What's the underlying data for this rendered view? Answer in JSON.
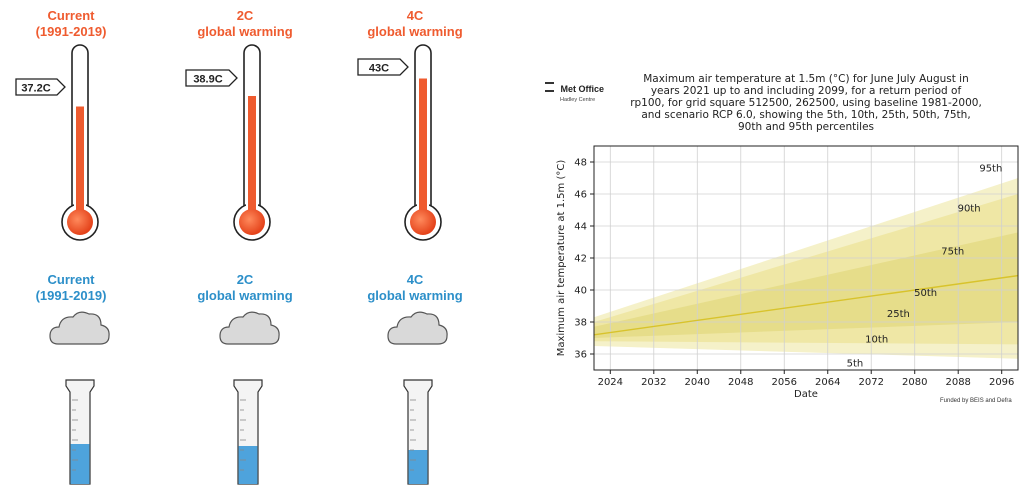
{
  "temperature_columns": [
    {
      "title": "Current\n(1991-2019)",
      "value_label": "37.2C",
      "fill_fraction": 0.66
    },
    {
      "title": "2C\nglobal warming",
      "value_label": "38.9C",
      "fill_fraction": 0.72
    },
    {
      "title": "4C\nglobal warming",
      "value_label": "43C",
      "fill_fraction": 0.82
    }
  ],
  "rain_columns": [
    {
      "title": "Current\n(1991-2019)"
    },
    {
      "title": "2C\nglobal warming"
    },
    {
      "title": "4C\nglobal warming"
    }
  ],
  "colors": {
    "thermometer_red": "#ef5b2f",
    "rain_blue": "#2c8fc9",
    "band_outer": "#f5f1c9",
    "band_mid": "#efe7a5",
    "band_inner": "#e6dd8a",
    "median_line": "#d8c32c"
  },
  "icons": {
    "thermometer": "thermometer-icon",
    "cloud": "cloud-icon",
    "rain_gauge": "rain-gauge-icon"
  },
  "logo": {
    "name": "Met Office",
    "subname": "Hadley Centre"
  },
  "funding_note": "Funded by BEIS and Defra",
  "chart_data": {
    "type": "area",
    "title": "Maximum air temperature at 1.5m (°C) for June July August in\nyears 2021 up to and including 2099, for a return period of\nrp100, for grid square 512500, 262500, using baseline 1981-2000,\nand scenario RCP 6.0, showing the 5th, 10th, 25th, 50th, 75th,\n90th and 95th percentiles",
    "xlabel": "Date",
    "ylabel": "Maximum air temperature at 1.5m (°C)",
    "xlim": [
      2021,
      2099
    ],
    "ylim": [
      35.0,
      49.0
    ],
    "xticks": [
      2024,
      2032,
      2040,
      2048,
      2056,
      2064,
      2072,
      2080,
      2088,
      2096
    ],
    "yticks": [
      36,
      38,
      40,
      42,
      44,
      46,
      48
    ],
    "grid": true,
    "x": [
      2021,
      2099
    ],
    "percentiles": [
      {
        "name": "5th",
        "values": [
          36.5,
          35.7
        ],
        "label_at": [
          2069,
          35.4
        ]
      },
      {
        "name": "10th",
        "values": [
          36.8,
          36.6
        ],
        "label_at": [
          2073,
          36.9
        ]
      },
      {
        "name": "25th",
        "values": [
          37.0,
          38.0
        ],
        "label_at": [
          2077,
          38.5
        ]
      },
      {
        "name": "50th",
        "values": [
          37.2,
          40.9
        ],
        "label_at": [
          2082,
          39.8
        ]
      },
      {
        "name": "75th",
        "values": [
          37.7,
          43.6
        ],
        "label_at": [
          2087,
          42.4
        ]
      },
      {
        "name": "90th",
        "values": [
          38.0,
          46.0
        ],
        "label_at": [
          2090,
          45.1
        ]
      },
      {
        "name": "95th",
        "values": [
          38.3,
          47.0
        ],
        "label_at": [
          2094,
          47.6
        ]
      }
    ]
  }
}
